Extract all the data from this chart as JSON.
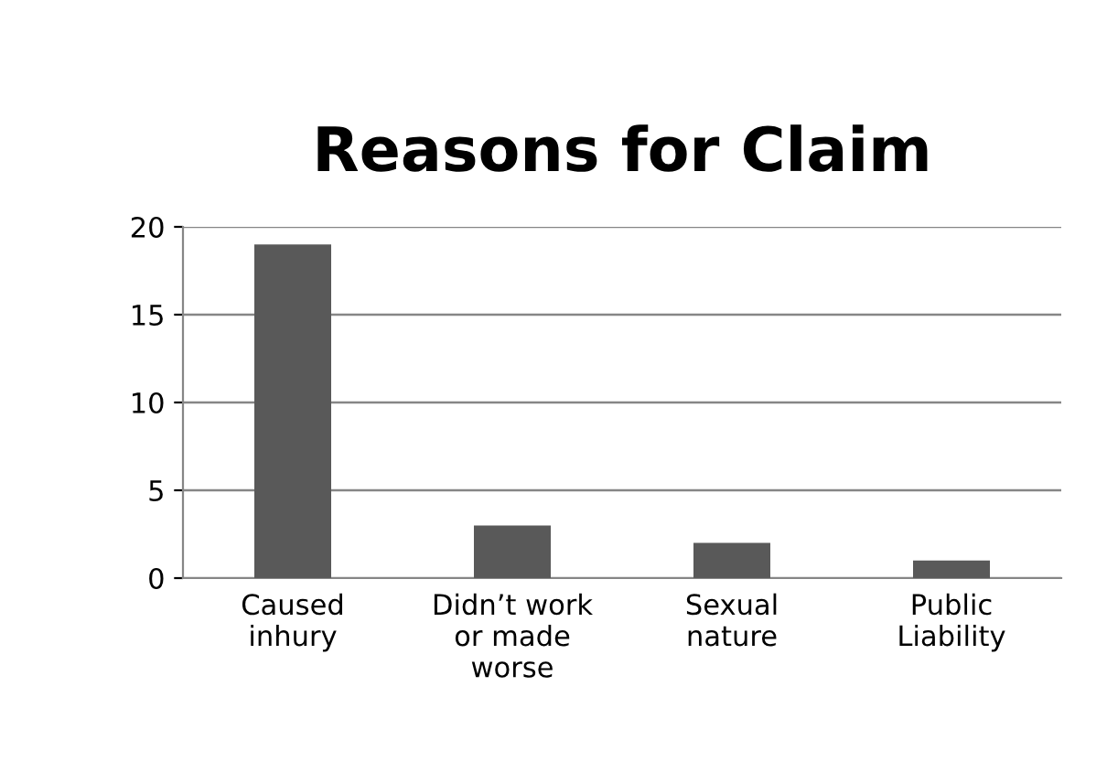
{
  "chart_data": {
    "type": "bar",
    "title": "Reasons for Claim",
    "categories": [
      "Caused\ninhury",
      "Didn’t work\nor made\nworse",
      "Sexual\nnature",
      "Public\nLiability"
    ],
    "values": [
      19,
      3,
      2,
      1
    ],
    "color": "#595959",
    "ylim": [
      0,
      20
    ],
    "yticks": [
      0,
      5,
      10,
      15,
      20
    ],
    "grid": "y"
  }
}
